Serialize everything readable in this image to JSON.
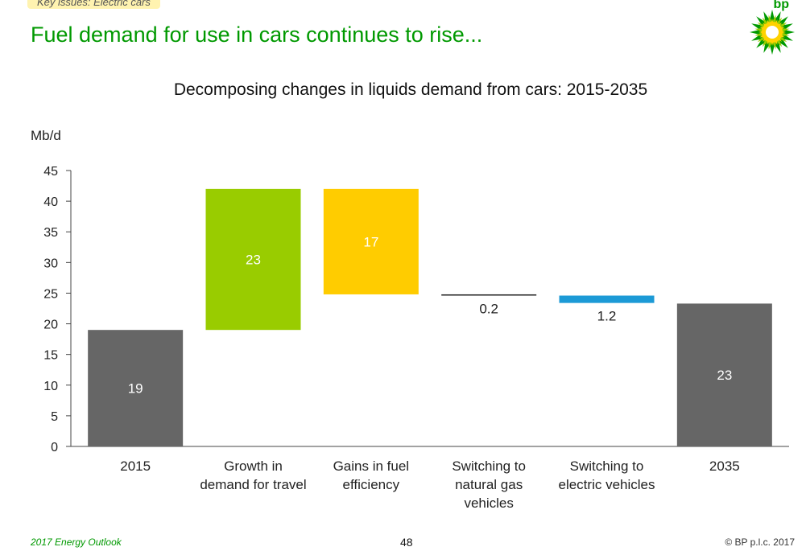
{
  "header": {
    "tag": "Key issues: Electric cars",
    "title": "Fuel demand for use in cars continues to rise...",
    "logo_text": "bp"
  },
  "footer": {
    "publication": "2017 Energy Outlook",
    "page_number": "48",
    "copyright": "© BP p.l.c. 2017"
  },
  "colors": {
    "brand_green": "#009900",
    "dark_gray": "#666666",
    "lime": "#99cc00",
    "yellow": "#ffcc00",
    "blue": "#1c9ad6"
  },
  "chart_data": {
    "type": "waterfall",
    "title": "Decomposing changes in liquids demand from cars: 2015-2035",
    "ylabel": "Mb/d",
    "ylim": [
      0,
      45
    ],
    "yticks": [
      0,
      5,
      10,
      15,
      20,
      25,
      30,
      35,
      40,
      45
    ],
    "categories": [
      [
        "2015"
      ],
      [
        "Growth in",
        "demand for travel"
      ],
      [
        "Gains in fuel",
        "efficiency"
      ],
      [
        "Switching to",
        "natural gas",
        "vehicles"
      ],
      [
        "Switching to",
        "electric vehicles"
      ],
      [
        "2035"
      ]
    ],
    "bars": [
      {
        "base": 0,
        "top": 19,
        "label": "19",
        "color": "#666666",
        "label_pos": "inside"
      },
      {
        "base": 19,
        "top": 42,
        "label": "23",
        "color": "#99cc00",
        "label_pos": "inside"
      },
      {
        "base": 24.8,
        "top": 42,
        "label": "17",
        "color": "#ffcc00",
        "label_pos": "inside"
      },
      {
        "base": 24.6,
        "top": 24.8,
        "label": "0.2",
        "color": "#222222",
        "label_pos": "below"
      },
      {
        "base": 23.4,
        "top": 24.6,
        "label": "1.2",
        "color": "#1c9ad6",
        "label_pos": "below"
      },
      {
        "base": 0,
        "top": 23.3,
        "label": "23",
        "color": "#666666",
        "label_pos": "inside"
      }
    ],
    "grid": false,
    "legend": "none"
  }
}
